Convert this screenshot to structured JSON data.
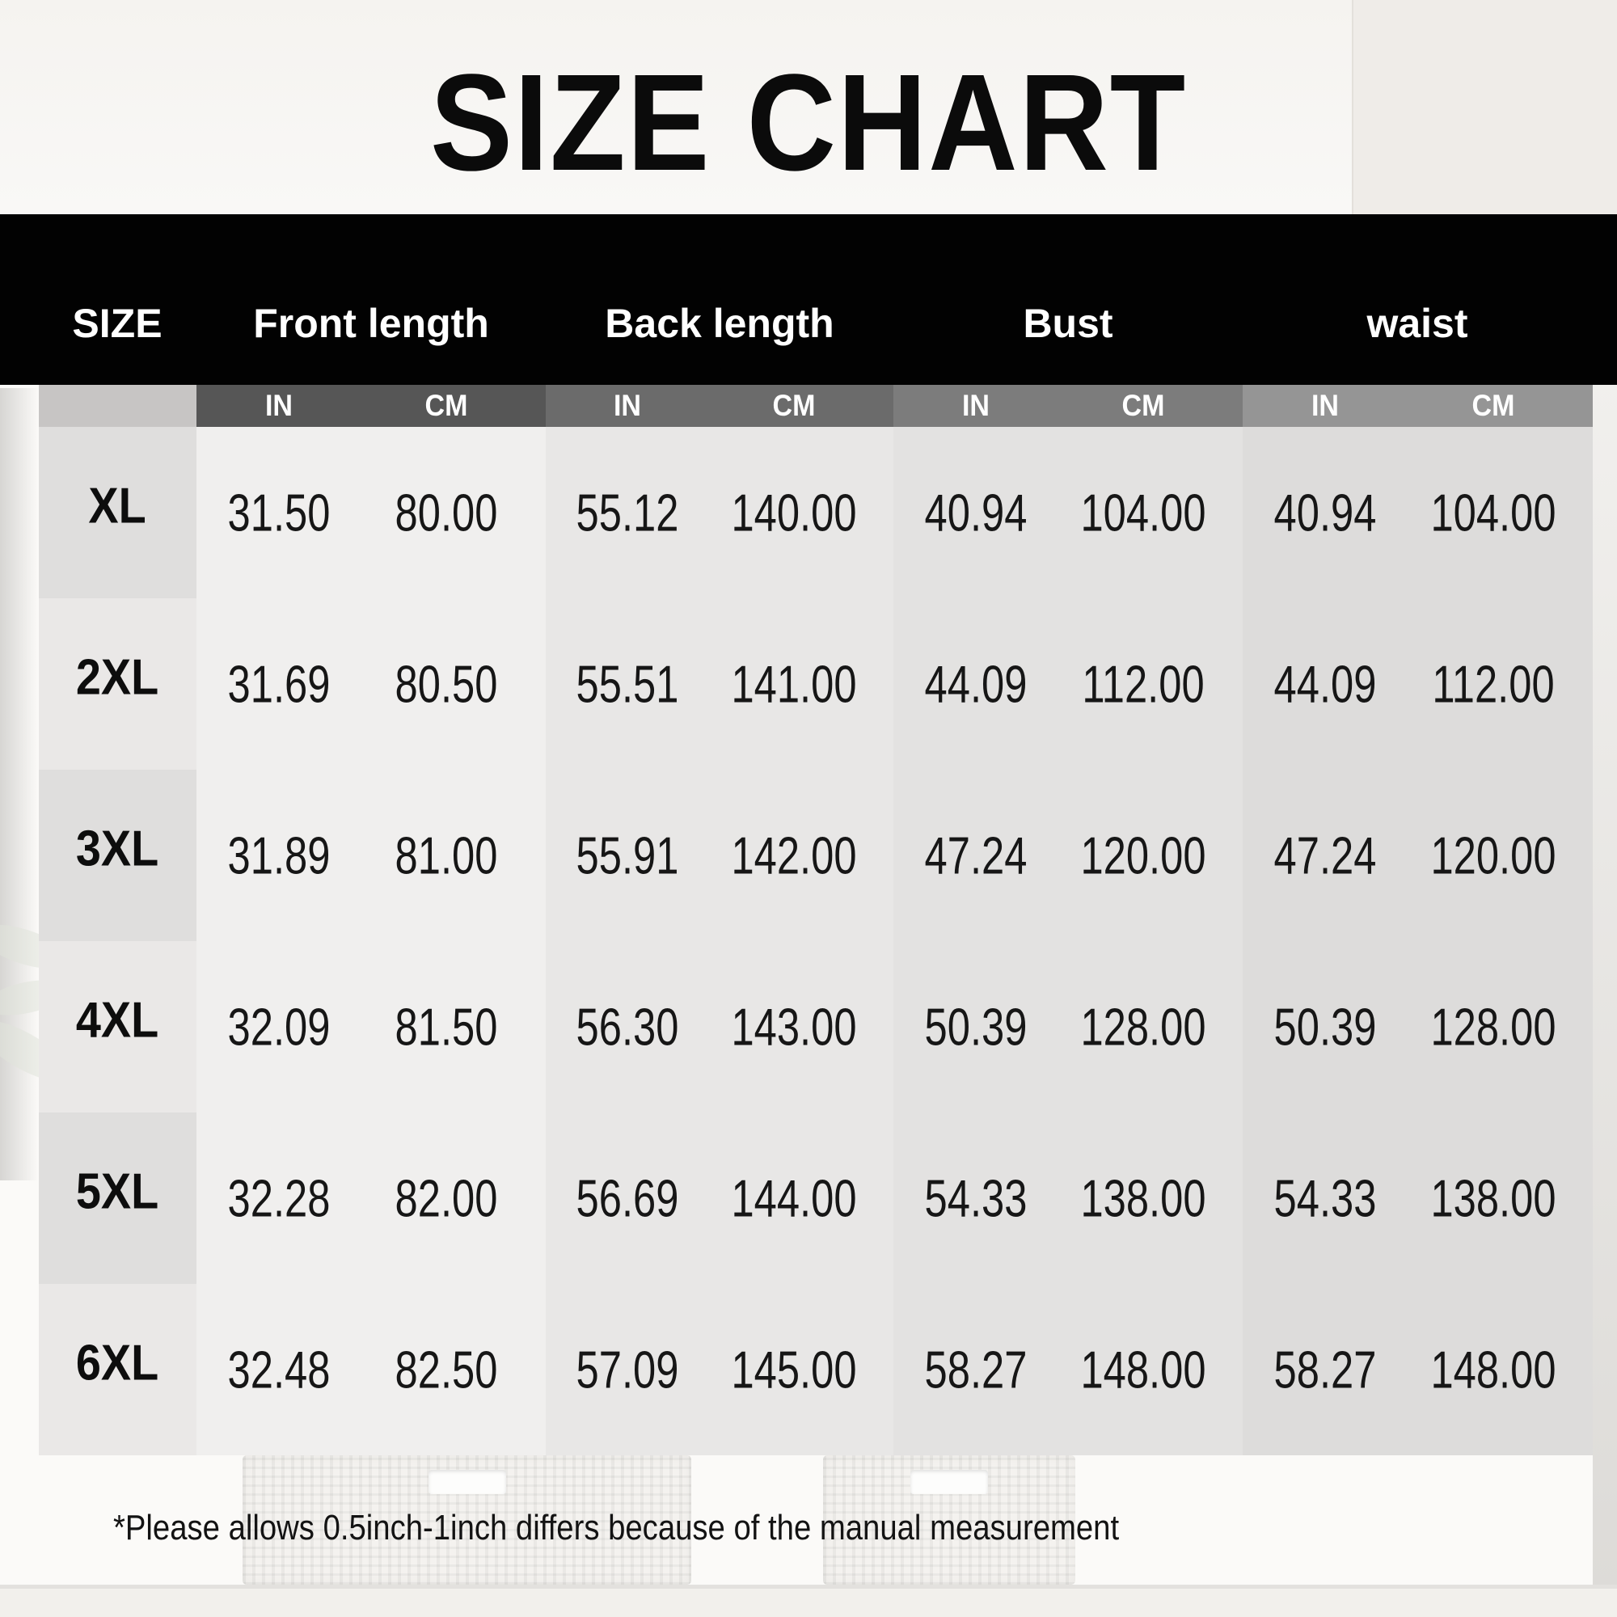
{
  "title": "SIZE CHART",
  "table": {
    "size_column_header": "SIZE",
    "unit_in": "IN",
    "unit_cm": "CM",
    "groups": [
      "Front length",
      "Back length",
      "Bust",
      "waist"
    ],
    "rows": [
      {
        "size": "XL",
        "values": [
          "31.50",
          "80.00",
          "55.12",
          "140.00",
          "40.94",
          "104.00",
          "40.94",
          "104.00"
        ]
      },
      {
        "size": "2XL",
        "values": [
          "31.69",
          "80.50",
          "55.51",
          "141.00",
          "44.09",
          "112.00",
          "44.09",
          "112.00"
        ]
      },
      {
        "size": "3XL",
        "values": [
          "31.89",
          "81.00",
          "55.91",
          "142.00",
          "47.24",
          "120.00",
          "47.24",
          "120.00"
        ]
      },
      {
        "size": "4XL",
        "values": [
          "32.09",
          "81.50",
          "56.30",
          "143.00",
          "50.39",
          "128.00",
          "50.39",
          "128.00"
        ]
      },
      {
        "size": "5XL",
        "values": [
          "32.28",
          "82.00",
          "56.69",
          "144.00",
          "54.33",
          "138.00",
          "54.33",
          "138.00"
        ]
      },
      {
        "size": "6XL",
        "values": [
          "32.48",
          "82.50",
          "57.09",
          "145.00",
          "58.27",
          "148.00",
          "58.27",
          "148.00"
        ]
      }
    ]
  },
  "footnote": "*Please allows 0.5inch-1inch differs because of the manual measurement",
  "colors": {
    "header_bar": "#020202",
    "unit_bar_size": "#c7c5c4",
    "unit_bar_front": "#565656",
    "unit_bar_back": "#6b6b6b",
    "unit_bar_bust": "#7c7c7c",
    "unit_bar_waist": "#959595",
    "band_front": "#f0efee",
    "band_back": "#e8e7e6",
    "band_bust": "#e3e2e1",
    "band_waist": "#dddcdb",
    "size_col_odd": "#dfdedd",
    "size_col_even": "#eae8e7"
  }
}
